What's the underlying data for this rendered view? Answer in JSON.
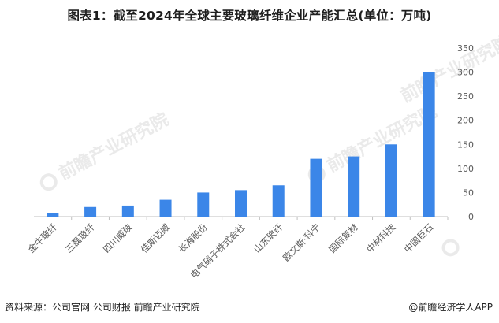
{
  "title": "图表1：截至2024年全球主要玻璃纤维企业产能汇总(单位：万吨)",
  "footer": {
    "source": "资料来源：公司官网 公司财报 前瞻产业研究院",
    "brand": "@前瞻经济学人APP"
  },
  "watermark_text": "前瞻产业研究院",
  "colors": {
    "bar": "#3b86e8",
    "axis": "#bfbfbf",
    "text": "#595959"
  },
  "chart_data": {
    "type": "bar",
    "categories": [
      "金牛玻纤",
      "三磊玻纤",
      "四川威玻",
      "佳斯迈威",
      "长海股份",
      "电气硝子株式会社",
      "山东玻纤",
      "欧文斯·科宁",
      "国际复材",
      "中材科技",
      "中国巨石"
    ],
    "values": [
      8,
      20,
      23,
      35,
      50,
      55,
      65,
      120,
      125,
      150,
      300
    ],
    "ylim": [
      0,
      350
    ],
    "yticks": [
      0,
      50,
      100,
      150,
      200,
      250,
      300,
      350
    ],
    "y_axis_side": "right",
    "grid": false,
    "legend": "none"
  }
}
